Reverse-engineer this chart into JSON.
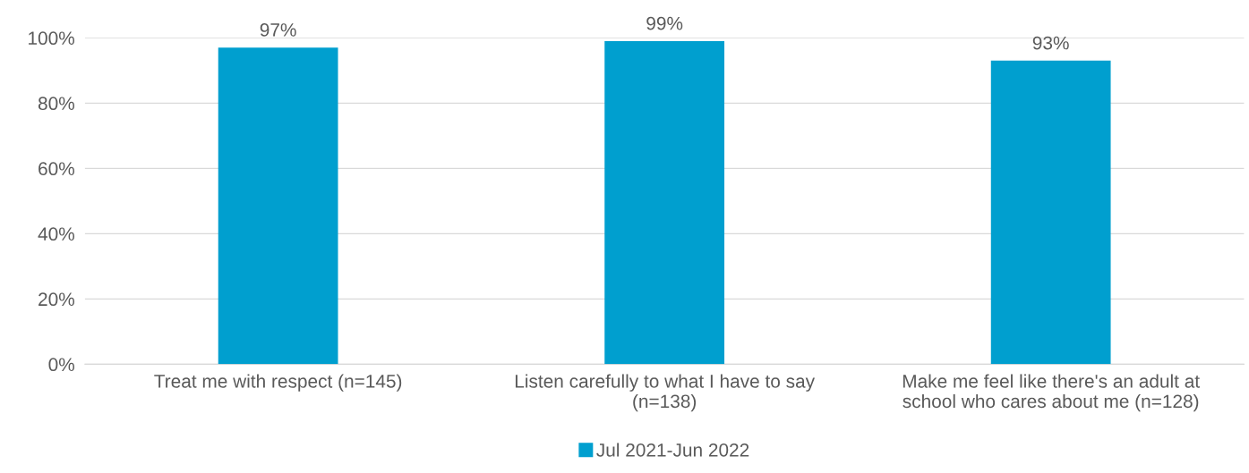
{
  "chart_data": {
    "type": "bar",
    "categories": [
      "Treat me with respect (n=145)",
      "Listen carefully to what I have to say\n(n=138)",
      "Make me feel like there's an adult at\nschool who cares about me (n=128)"
    ],
    "series": [
      {
        "name": "Jul 2021-Jun 2022",
        "color": "#009fcf",
        "values": [
          97,
          99,
          93
        ],
        "value_labels": [
          "97%",
          "99%",
          "93%"
        ]
      }
    ],
    "ylim": [
      0,
      100
    ],
    "yticks": [
      {
        "value": 0,
        "label": "0%"
      },
      {
        "value": 20,
        "label": "20%"
      },
      {
        "value": 40,
        "label": "40%"
      },
      {
        "value": 60,
        "label": "60%"
      },
      {
        "value": 80,
        "label": "80%"
      },
      {
        "value": 100,
        "label": "100%"
      }
    ],
    "grid": "y",
    "legend": "bottom"
  }
}
